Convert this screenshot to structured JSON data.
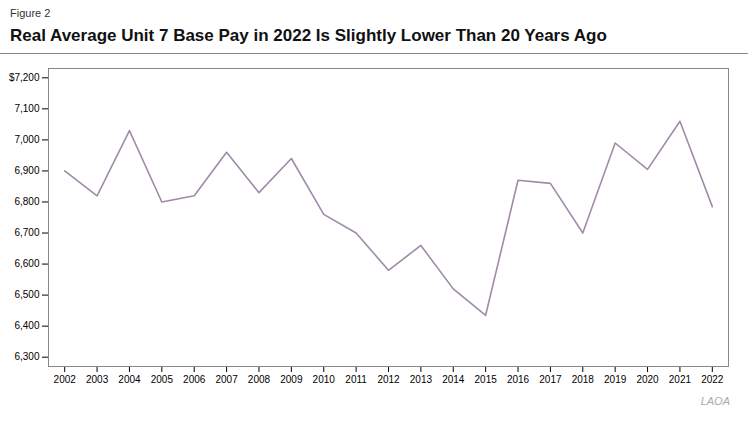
{
  "chart_data": {
    "type": "line",
    "title": "Real Average Unit 7 Base Pay in 2022 Is Slightly Lower Than 20 Years Ago",
    "subtitle": "Figure 2",
    "annotations": [
      "LAOA"
    ],
    "x": [
      2002,
      2003,
      2004,
      2005,
      2006,
      2007,
      2008,
      2009,
      2010,
      2011,
      2012,
      2013,
      2014,
      2015,
      2016,
      2017,
      2018,
      2019,
      2020,
      2021,
      2022
    ],
    "values": [
      6900,
      6820,
      7030,
      6800,
      6820,
      6960,
      6830,
      6940,
      6760,
      6700,
      6580,
      6660,
      6520,
      6435,
      6870,
      6860,
      6700,
      6990,
      6905,
      7060,
      6785
    ],
    "color": "#a08aaa",
    "xlim": [
      2001.5,
      2022.5
    ],
    "xticks": [
      2002,
      2003,
      2004,
      2005,
      2006,
      2007,
      2008,
      2009,
      2010,
      2011,
      2012,
      2013,
      2014,
      2015,
      2016,
      2017,
      2018,
      2019,
      2020,
      2021,
      2022
    ],
    "ylim": [
      6270,
      7230
    ],
    "yticks": [
      {
        "value": 6300,
        "label": "6,300"
      },
      {
        "value": 6400,
        "label": "6,400"
      },
      {
        "value": 6500,
        "label": "6,500"
      },
      {
        "value": 6600,
        "label": "6,600"
      },
      {
        "value": 6700,
        "label": "6,700"
      },
      {
        "value": 6800,
        "label": "6,800"
      },
      {
        "value": 6900,
        "label": "6,900"
      },
      {
        "value": 7000,
        "label": "7,000"
      },
      {
        "value": 7100,
        "label": "7,100"
      },
      {
        "value": 7200,
        "label": "$7,200"
      }
    ],
    "grid": false
  }
}
